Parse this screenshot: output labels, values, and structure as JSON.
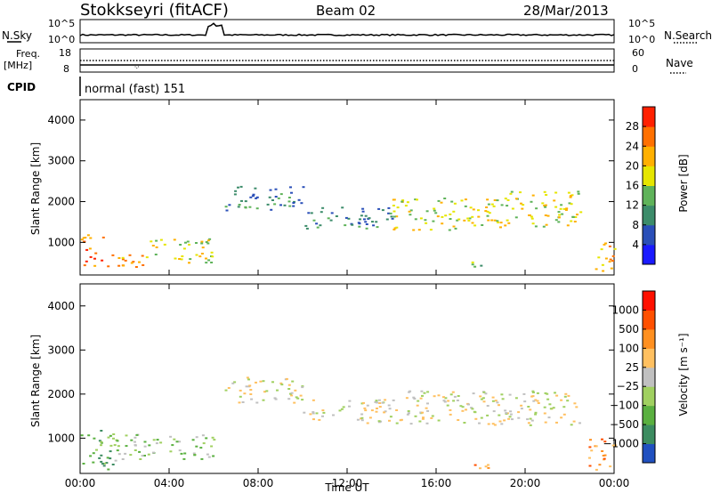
{
  "header": {
    "station": "Stokkseyri (fitACF)",
    "beam": "Beam 02",
    "date": "28/Mar/2013"
  },
  "panels": {
    "nsky_label": "N.Sky",
    "nsearch_label": "N.Search",
    "nsky_ticks": [
      "10^5",
      "10^0"
    ],
    "freq_label": "Freq.",
    "freq_unit": "[MHz]",
    "freq_ticks": [
      "18",
      "8"
    ],
    "nave_label": "Nave",
    "nave_ticks": [
      "60",
      "0"
    ],
    "cpid_label": "CPID",
    "cpid_value": "normal (fast) 151"
  },
  "chart_data": [
    {
      "type": "heatmap",
      "name": "power",
      "ylabel": "Slant Range [km]",
      "yticks": [
        "1000",
        "2000",
        "3000",
        "4000"
      ],
      "ylim": [
        200,
        4500
      ],
      "xlim_hours": [
        0,
        24
      ],
      "colorbar": {
        "label": "Power [dB]",
        "ticks": [
          "4",
          "8",
          "12",
          "16",
          "20",
          "24",
          "28"
        ],
        "colors": [
          "#1a1aff",
          "#2a4fb8",
          "#3c8c6a",
          "#5fb35a",
          "#e6e600",
          "#ffb000",
          "#ff7000",
          "#ff2000"
        ]
      },
      "scatter_bands": [
        {
          "t": [
            0.0,
            1.0
          ],
          "r": [
            400,
            1200
          ],
          "level": 6
        },
        {
          "t": [
            1.0,
            3.0
          ],
          "r": [
            400,
            800
          ],
          "level": 5
        },
        {
          "t": [
            3.0,
            6.0
          ],
          "r": [
            500,
            1100
          ],
          "level": 4
        },
        {
          "t": [
            6.5,
            10.0
          ],
          "r": [
            1800,
            2400
          ],
          "level": 2
        },
        {
          "t": [
            10.0,
            14.0
          ],
          "r": [
            1350,
            1900
          ],
          "level": 2
        },
        {
          "t": [
            14.0,
            19.0
          ],
          "r": [
            1300,
            2100
          ],
          "level": 4
        },
        {
          "t": [
            19.0,
            22.5
          ],
          "r": [
            1400,
            2300
          ],
          "level": 4
        },
        {
          "t": [
            17.5,
            18.2
          ],
          "r": [
            300,
            600
          ],
          "level": 3
        },
        {
          "t": [
            23.0,
            24.0
          ],
          "r": [
            300,
            1000
          ],
          "level": 5
        }
      ]
    },
    {
      "type": "heatmap",
      "name": "velocity",
      "xlabel": "Time UT",
      "ylabel": "Slant Range [km]",
      "yticks": [
        "1000",
        "2000",
        "3000",
        "4000"
      ],
      "xticks": [
        "00:00",
        "04:00",
        "08:00",
        "12:00",
        "16:00",
        "20:00",
        "00:00"
      ],
      "ylim": [
        200,
        4500
      ],
      "xlim_hours": [
        0,
        24
      ],
      "colorbar": {
        "label": "Velocity [m s⁻¹]",
        "ticks": [
          "1000",
          "500",
          "100",
          "25",
          "−25",
          "−100",
          "−500",
          "−1000"
        ],
        "colors": [
          "#2050c0",
          "#3c8c60",
          "#5ab040",
          "#a0d060",
          "#c0c0c0",
          "#ffc060",
          "#ff9020",
          "#ff5000",
          "#ff1000"
        ]
      },
      "scatter_bands": [
        {
          "t": [
            0.0,
            1.5
          ],
          "r": [
            300,
            1200
          ],
          "level": 2
        },
        {
          "t": [
            1.5,
            6.0
          ],
          "r": [
            500,
            1100
          ],
          "level": 3
        },
        {
          "t": [
            6.5,
            10.0
          ],
          "r": [
            1800,
            2400
          ],
          "level": 4
        },
        {
          "t": [
            10.0,
            14.0
          ],
          "r": [
            1350,
            1900
          ],
          "level": 4
        },
        {
          "t": [
            14.0,
            22.5
          ],
          "r": [
            1300,
            2100
          ],
          "level": 4
        },
        {
          "t": [
            17.5,
            18.3
          ],
          "r": [
            250,
            550
          ],
          "level": 6
        },
        {
          "t": [
            22.8,
            24.0
          ],
          "r": [
            300,
            1000
          ],
          "level": 6
        }
      ]
    }
  ]
}
